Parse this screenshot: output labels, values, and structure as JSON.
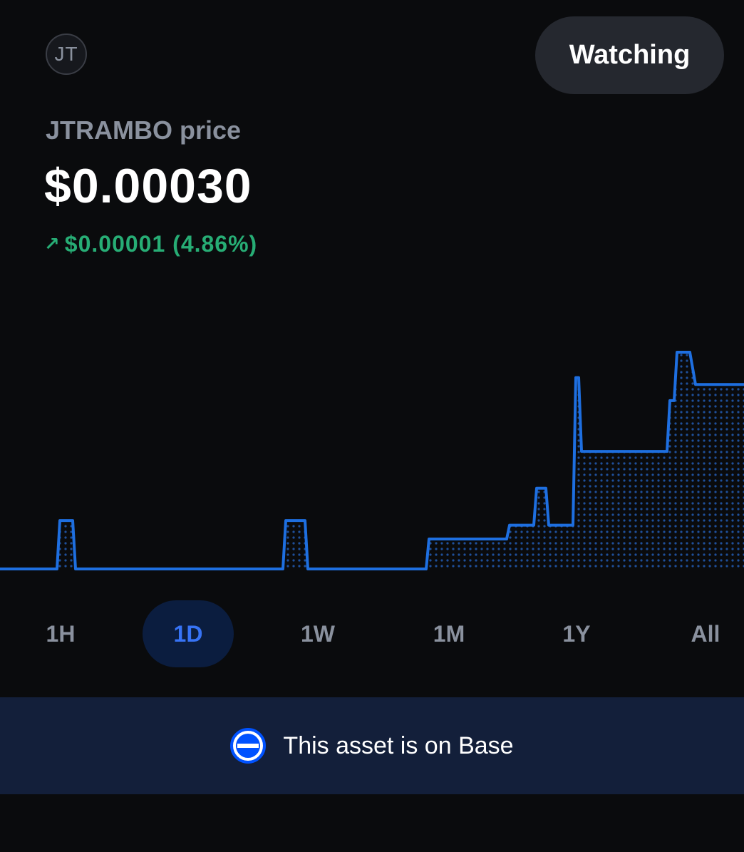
{
  "header": {
    "avatar_initials": "JT",
    "watch_label": "Watching"
  },
  "price": {
    "label": "JTRAMBO price",
    "value": "$0.00030",
    "change_icon": "arrow-up-right-icon",
    "change_text": "$0.00001 (4.86%)",
    "change_color": "#27ad75"
  },
  "chart_data": {
    "type": "line",
    "series_color": "#1e6fe0",
    "fill": "dotted",
    "x": [
      0,
      80,
      84,
      102,
      106,
      397,
      401,
      428,
      432,
      598,
      602,
      711,
      715,
      749,
      753,
      766,
      770,
      804,
      808,
      812,
      816,
      936,
      940,
      946,
      950,
      968,
      976,
      1044
    ],
    "values": [
      0.0,
      0.0,
      0.00021,
      0.00021,
      0.0,
      0.0,
      0.00021,
      0.00021,
      0.0,
      0.0,
      0.00013,
      0.00013,
      0.00019,
      0.00019,
      0.00035,
      0.00035,
      0.00019,
      0.00019,
      0.00083,
      0.00083,
      0.00051,
      0.00051,
      0.00073,
      0.00073,
      0.00094,
      0.00094,
      0.0008,
      0.0008
    ]
  },
  "ranges": [
    {
      "label": "1H",
      "active": false
    },
    {
      "label": "1D",
      "active": true
    },
    {
      "label": "1W",
      "active": false
    },
    {
      "label": "1M",
      "active": false
    },
    {
      "label": "1Y",
      "active": false
    },
    {
      "label": "All",
      "active": false
    }
  ],
  "banner": {
    "icon": "base-network-icon",
    "text": "This asset is on Base",
    "icon_color": "#0052ff"
  }
}
